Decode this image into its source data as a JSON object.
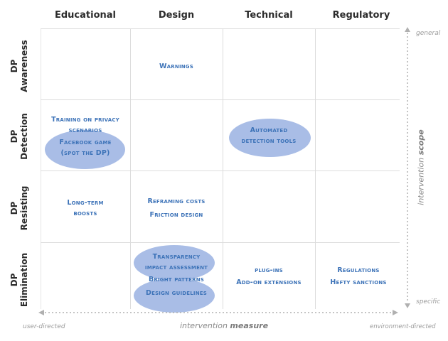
{
  "columns": [
    "Educational",
    "Design",
    "Technical",
    "Regulatory"
  ],
  "rows": [
    {
      "prefix": "DP",
      "label": "Awareness"
    },
    {
      "prefix": "DP",
      "label": "Detection"
    },
    {
      "prefix": "DP",
      "label": "Resisting"
    },
    {
      "prefix": "DP",
      "label": "Elimination"
    }
  ],
  "cells": {
    "awareness_design": "Warnings",
    "detection_educational_training_1": "Training on privacy",
    "detection_educational_training_2": "scenarios",
    "detection_educational_facebook_1": "Facebook game",
    "detection_educational_facebook_2": "(spot the DP)",
    "detection_technical_1": "Automated",
    "detection_technical_2": "detection tools",
    "resisting_educational_1": "Long-term",
    "resisting_educational_2": "boosts",
    "resisting_design_1": "Reframing costs",
    "resisting_design_2": "Friction design",
    "elimination_design_transparency_1": "Transparency",
    "elimination_design_transparency_2": "impact assessment",
    "elimination_design_bright": "Bright patterns",
    "elimination_design_guidelines": "Design guidelines",
    "elimination_technical_1": "plug-ins",
    "elimination_technical_2": "Add-on extensions",
    "elimination_regulatory_1": "Regulations",
    "elimination_regulatory_2": "Hefty sanctions"
  },
  "axes": {
    "y_top": "general",
    "y_bottom": "specific",
    "y_title_prefix": "intervention",
    "y_title_bold": "scope",
    "x_left": "user-directed",
    "x_right": "environment-directed",
    "x_title_prefix": "intervention",
    "x_title_bold": "measure"
  },
  "colors": {
    "text_blue": "#3d73b8",
    "ellipse_fill": "#a9bde6",
    "grid_line": "#dcdcdc",
    "axis_gray": "#9a9a9a"
  }
}
